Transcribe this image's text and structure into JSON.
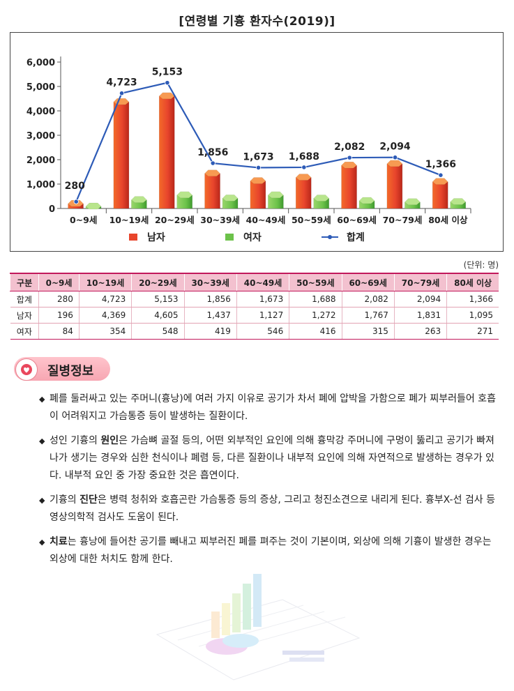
{
  "title": "[연령별 기흉 환자수(2019)]",
  "chart_data": {
    "type": "bar",
    "categories": [
      "0~9세",
      "10~19세",
      "20~29세",
      "30~39세",
      "40~49세",
      "50~59세",
      "60~69세",
      "70~79세",
      "80세 이상"
    ],
    "series": [
      {
        "name": "남자",
        "type": "bar",
        "color": "#e8452c",
        "values": [
          196,
          4369,
          4605,
          1437,
          1127,
          1272,
          1767,
          1831,
          1095
        ]
      },
      {
        "name": "여자",
        "type": "bar",
        "color": "#6cc24a",
        "values": [
          84,
          354,
          548,
          419,
          546,
          416,
          315,
          263,
          271
        ]
      },
      {
        "name": "합계",
        "type": "line",
        "color": "#2d5bb7",
        "values": [
          280,
          4723,
          5153,
          1856,
          1673,
          1688,
          2082,
          2094,
          1366
        ]
      }
    ],
    "data_labels": [
      "280",
      "4,723",
      "5,153",
      "1,856",
      "1,673",
      "1,688",
      "2,082",
      "2,094",
      "1,366"
    ],
    "y_ticks": [
      "0",
      "1,000",
      "2,000",
      "3,000",
      "4,000",
      "5,000",
      "6,000"
    ],
    "ylim": [
      0,
      6000
    ],
    "legend_position": "bottom"
  },
  "table": {
    "unit": "(단위: 명)",
    "headers": [
      "구분",
      "0~9세",
      "10~19세",
      "20~29세",
      "30~39세",
      "40~49세",
      "50~59세",
      "60~69세",
      "70~79세",
      "80세 이상"
    ],
    "rows": [
      [
        "합계",
        "280",
        "4,723",
        "5,153",
        "1,856",
        "1,673",
        "1,688",
        "2,082",
        "2,094",
        "1,366"
      ],
      [
        "남자",
        "196",
        "4,369",
        "4,605",
        "1,437",
        "1,127",
        "1,272",
        "1,767",
        "1,831",
        "1,095"
      ],
      [
        "여자",
        "84",
        "354",
        "548",
        "419",
        "546",
        "416",
        "315",
        "263",
        "271"
      ]
    ]
  },
  "section": {
    "title": "질병정보",
    "icon": "heart-icon",
    "bullets": [
      {
        "parts": [
          {
            "t": "폐를 둘러싸고 있는 주머니(흉낭)에 여러 가지 이유로 공기가 차서 폐에 압박을 가함으로 폐가 찌부러들어 호흡이 어려워지고 가슴통증 등이 발생하는 질환이다."
          }
        ]
      },
      {
        "parts": [
          {
            "t": "성인 기흉의 "
          },
          {
            "t": "원인",
            "b": true
          },
          {
            "t": "은 가슴뼈 골절 등의, 어떤 외부적인 요인에 의해 흉막강 주머니에 구멍이 뚫리고 공기가 빠져나가 생기는 경우와 심한 천식이나 폐렴 등, 다른 질환이나 내부적 요인에 의해 자연적으로 발생하는 경우가 있다. 내부적 요인 중 가장 중요한 것은 흡연이다."
          }
        ]
      },
      {
        "parts": [
          {
            "t": "기흉의 "
          },
          {
            "t": "진단",
            "b": true
          },
          {
            "t": "은 병력 청취와 호흡곤란 가슴통증 등의 증상, 그리고 청진소견으로 내리게 된다. 흉부X-선 검사 등 영상의학적 검사도 도움이 된다."
          }
        ]
      },
      {
        "parts": [
          {
            "t": "치료",
            "b": true
          },
          {
            "t": "는 흉낭에 들어찬 공기를 빼내고 찌부러진 폐를 펴주는 것이 기본이며, 외상에 의해 기흉이 발생한 경우는 외상에 대한 처치도 함께 한다."
          }
        ]
      }
    ]
  }
}
